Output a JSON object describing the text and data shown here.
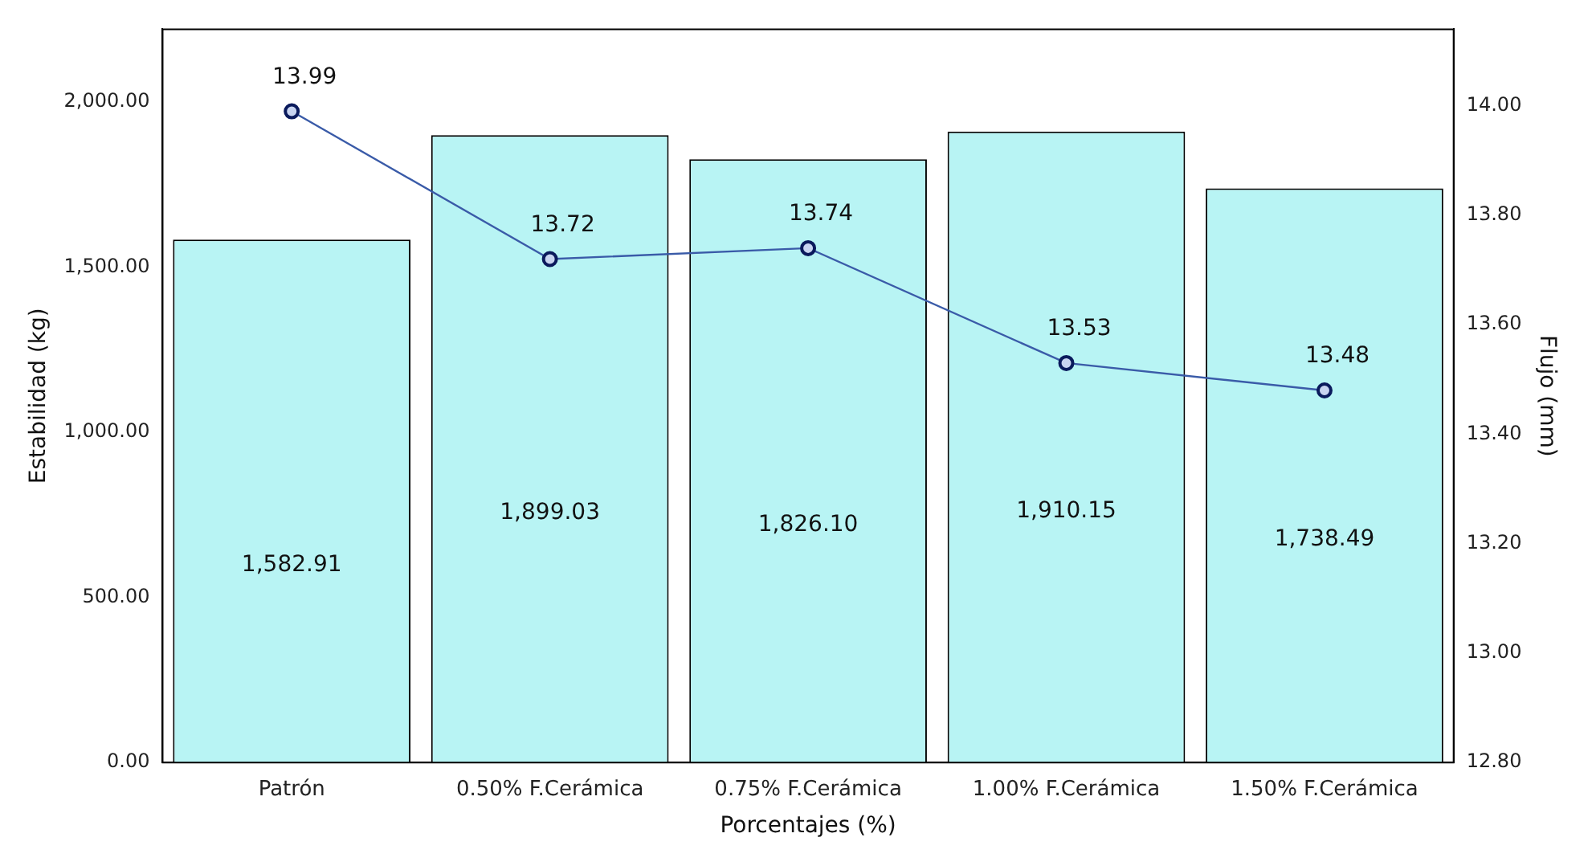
{
  "chart_data": {
    "type": "bar",
    "xlabel": "Porcentajes (%)",
    "ylabel": "Estabilidad (kg)",
    "y2label": "Flujo (mm)",
    "categories": [
      "Patrón",
      "0.50% F.Cerámica",
      "0.75% F.Cerámica",
      "1.00% F.Cerámica",
      "1.50% F.Cerámica"
    ],
    "series": [
      {
        "color": "#b8f4f4",
        "values": [
          1582.91,
          1899.03,
          1826.1,
          1910.15,
          1738.49
        ],
        "value_labels": [
          "1,582.91",
          "1,899.03",
          "1,826.10",
          "1,910.15",
          "1,738.49"
        ]
      },
      {
        "type": "line",
        "axis": "y2",
        "color": "#3a5ba8",
        "marker": "circle",
        "values": [
          13.99,
          13.72,
          13.74,
          13.53,
          13.48
        ],
        "value_labels": [
          "13.99",
          "13.72",
          "13.74",
          "13.53",
          "13.48"
        ]
      }
    ],
    "ylim": [
      0,
      2220
    ],
    "yticks": [
      {
        "value": 0,
        "label": "0.00"
      },
      {
        "value": 500,
        "label": "500.00"
      },
      {
        "value": 1000,
        "label": "1,000.00"
      },
      {
        "value": 1500,
        "label": "1,500.00"
      },
      {
        "value": 2000,
        "label": "2,000.00"
      }
    ],
    "y2lim": [
      12.8,
      14.14
    ],
    "y2ticks": [
      {
        "value": 12.8,
        "label": "12.80"
      },
      {
        "value": 13,
        "label": "13.00"
      },
      {
        "value": 13.2,
        "label": "13.20"
      },
      {
        "value": 13.4,
        "label": "13.40"
      },
      {
        "value": 13.6,
        "label": "13.60"
      },
      {
        "value": 13.8,
        "label": "13.80"
      },
      {
        "value": 14,
        "label": "14.00"
      }
    ],
    "grid": false,
    "legend": false
  }
}
